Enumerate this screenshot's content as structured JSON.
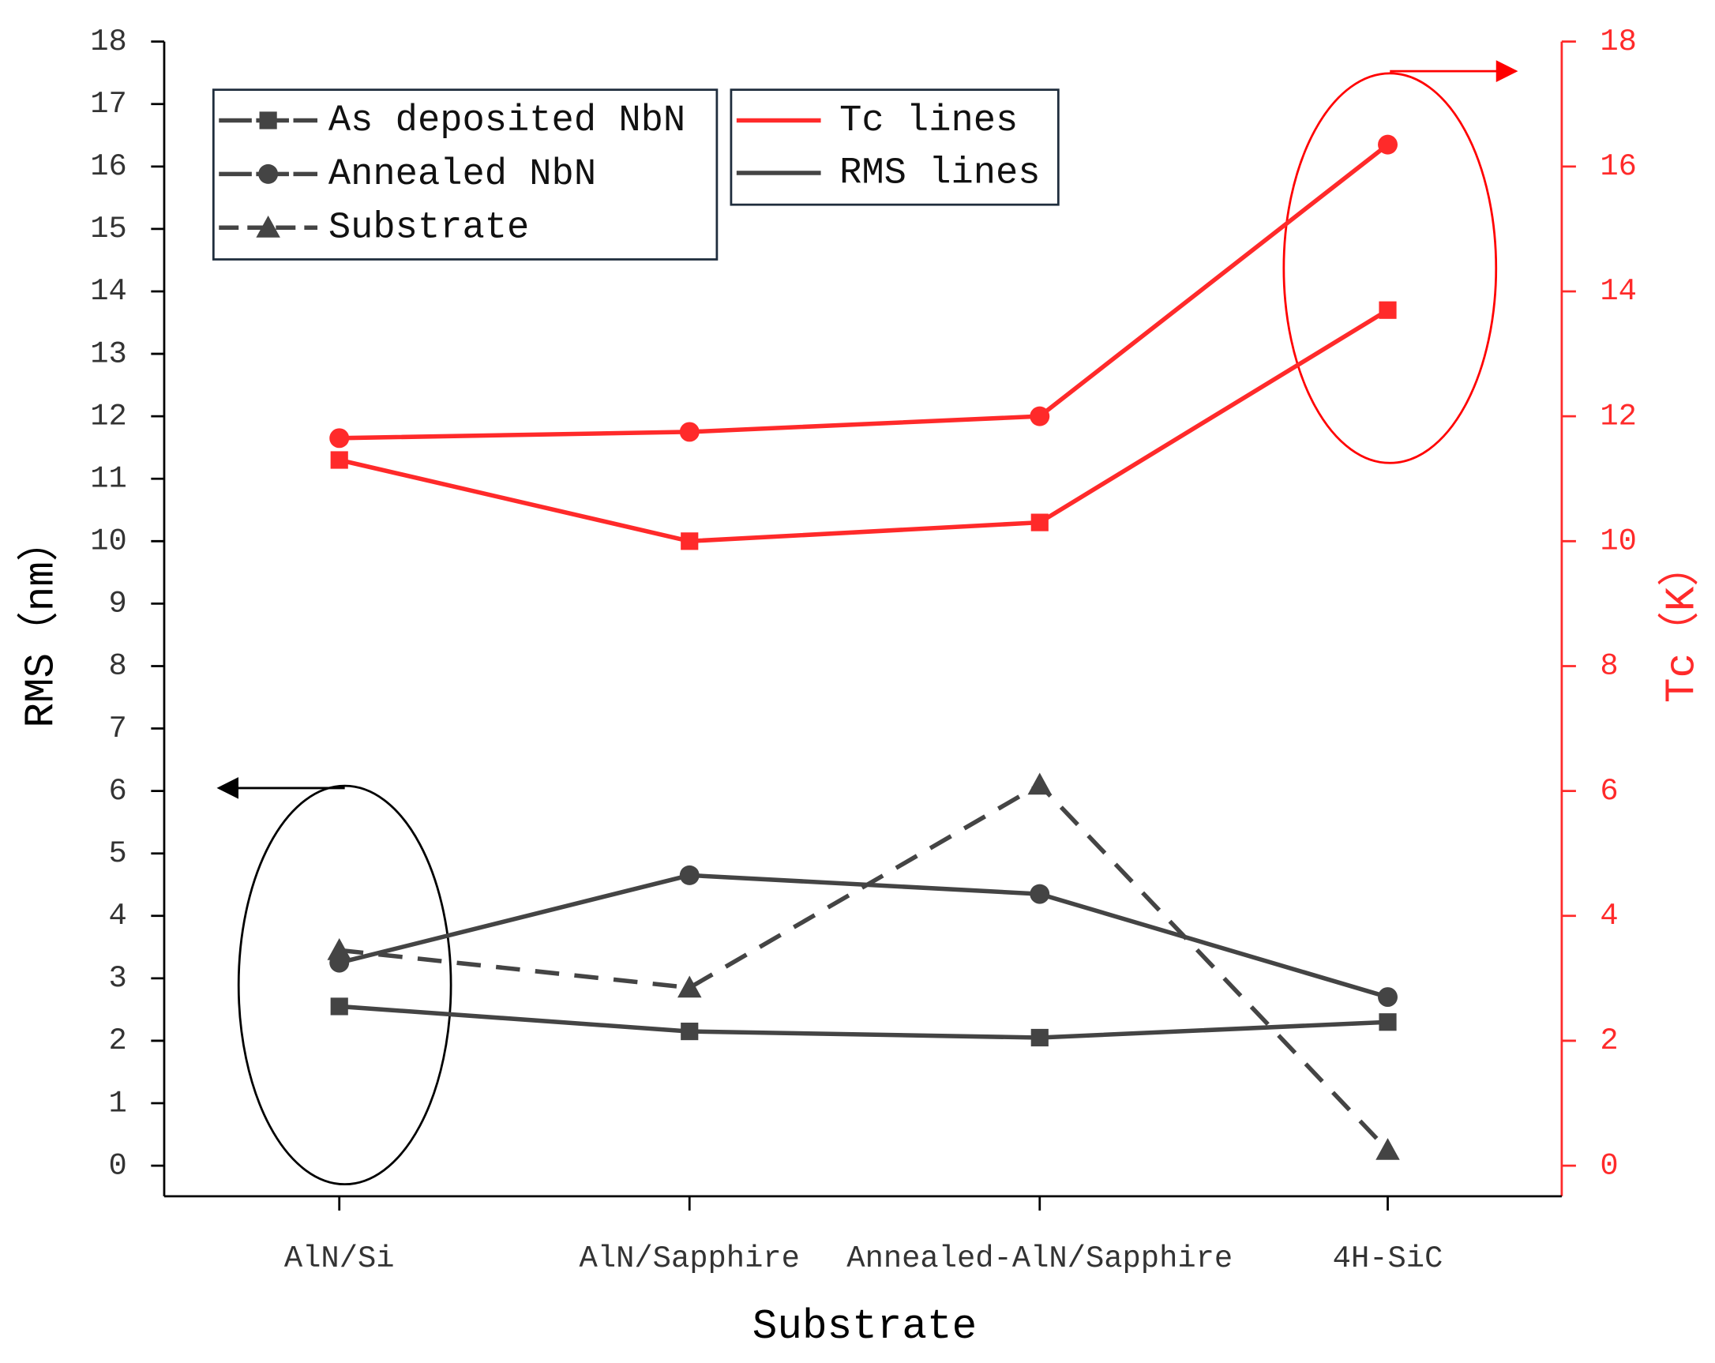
{
  "chart_data": {
    "type": "line",
    "categories": [
      "AlN/Si",
      "AlN/Sapphire",
      "Annealed-AlN/Sapphire",
      "4H-SiC"
    ],
    "x_label": "Substrate",
    "y_label": "RMS（nm）",
    "y2_label": "Tc（K）",
    "ylim": [
      0,
      18
    ],
    "yticks": [
      0,
      1,
      2,
      3,
      4,
      5,
      6,
      7,
      8,
      9,
      10,
      11,
      12,
      13,
      14,
      15,
      16,
      17,
      18
    ],
    "y2lim": [
      0,
      18
    ],
    "y2ticks": [
      0,
      2,
      4,
      6,
      8,
      10,
      12,
      14,
      16,
      18
    ],
    "series": [
      {
        "marker": "square",
        "dash": "solid",
        "color": "#444444",
        "values": [
          2.55,
          2.15,
          2.05,
          2.3
        ]
      },
      {
        "marker": "circle",
        "dash": "solid",
        "color": "#444444",
        "values": [
          3.25,
          4.65,
          4.35,
          2.7
        ]
      },
      {
        "marker": "triangle",
        "dash": "dashed",
        "color": "#444444",
        "values": [
          3.45,
          2.85,
          6.1,
          0.25
        ]
      },
      {
        "marker": "square",
        "dash": "solid",
        "color": "#ff2a2a",
        "axis": "y2",
        "values": [
          11.3,
          10.0,
          10.3,
          13.7
        ]
      },
      {
        "marker": "circle",
        "dash": "solid",
        "color": "#ff2a2a",
        "axis": "y2",
        "values": [
          11.65,
          11.75,
          12.0,
          16.35
        ]
      }
    ],
    "legend_markers": [
      {
        "label": "As deposited NbN",
        "marker": "square",
        "dash": "solid"
      },
      {
        "label": "Annealed NbN",
        "marker": "circle",
        "dash": "solid"
      },
      {
        "label": "Substrate",
        "marker": "triangle",
        "dash": "dashed"
      }
    ],
    "legend_lines": [
      {
        "label": "Tc lines",
        "color": "#ff2a2a"
      },
      {
        "label": "RMS lines",
        "color": "#444444"
      }
    ]
  }
}
